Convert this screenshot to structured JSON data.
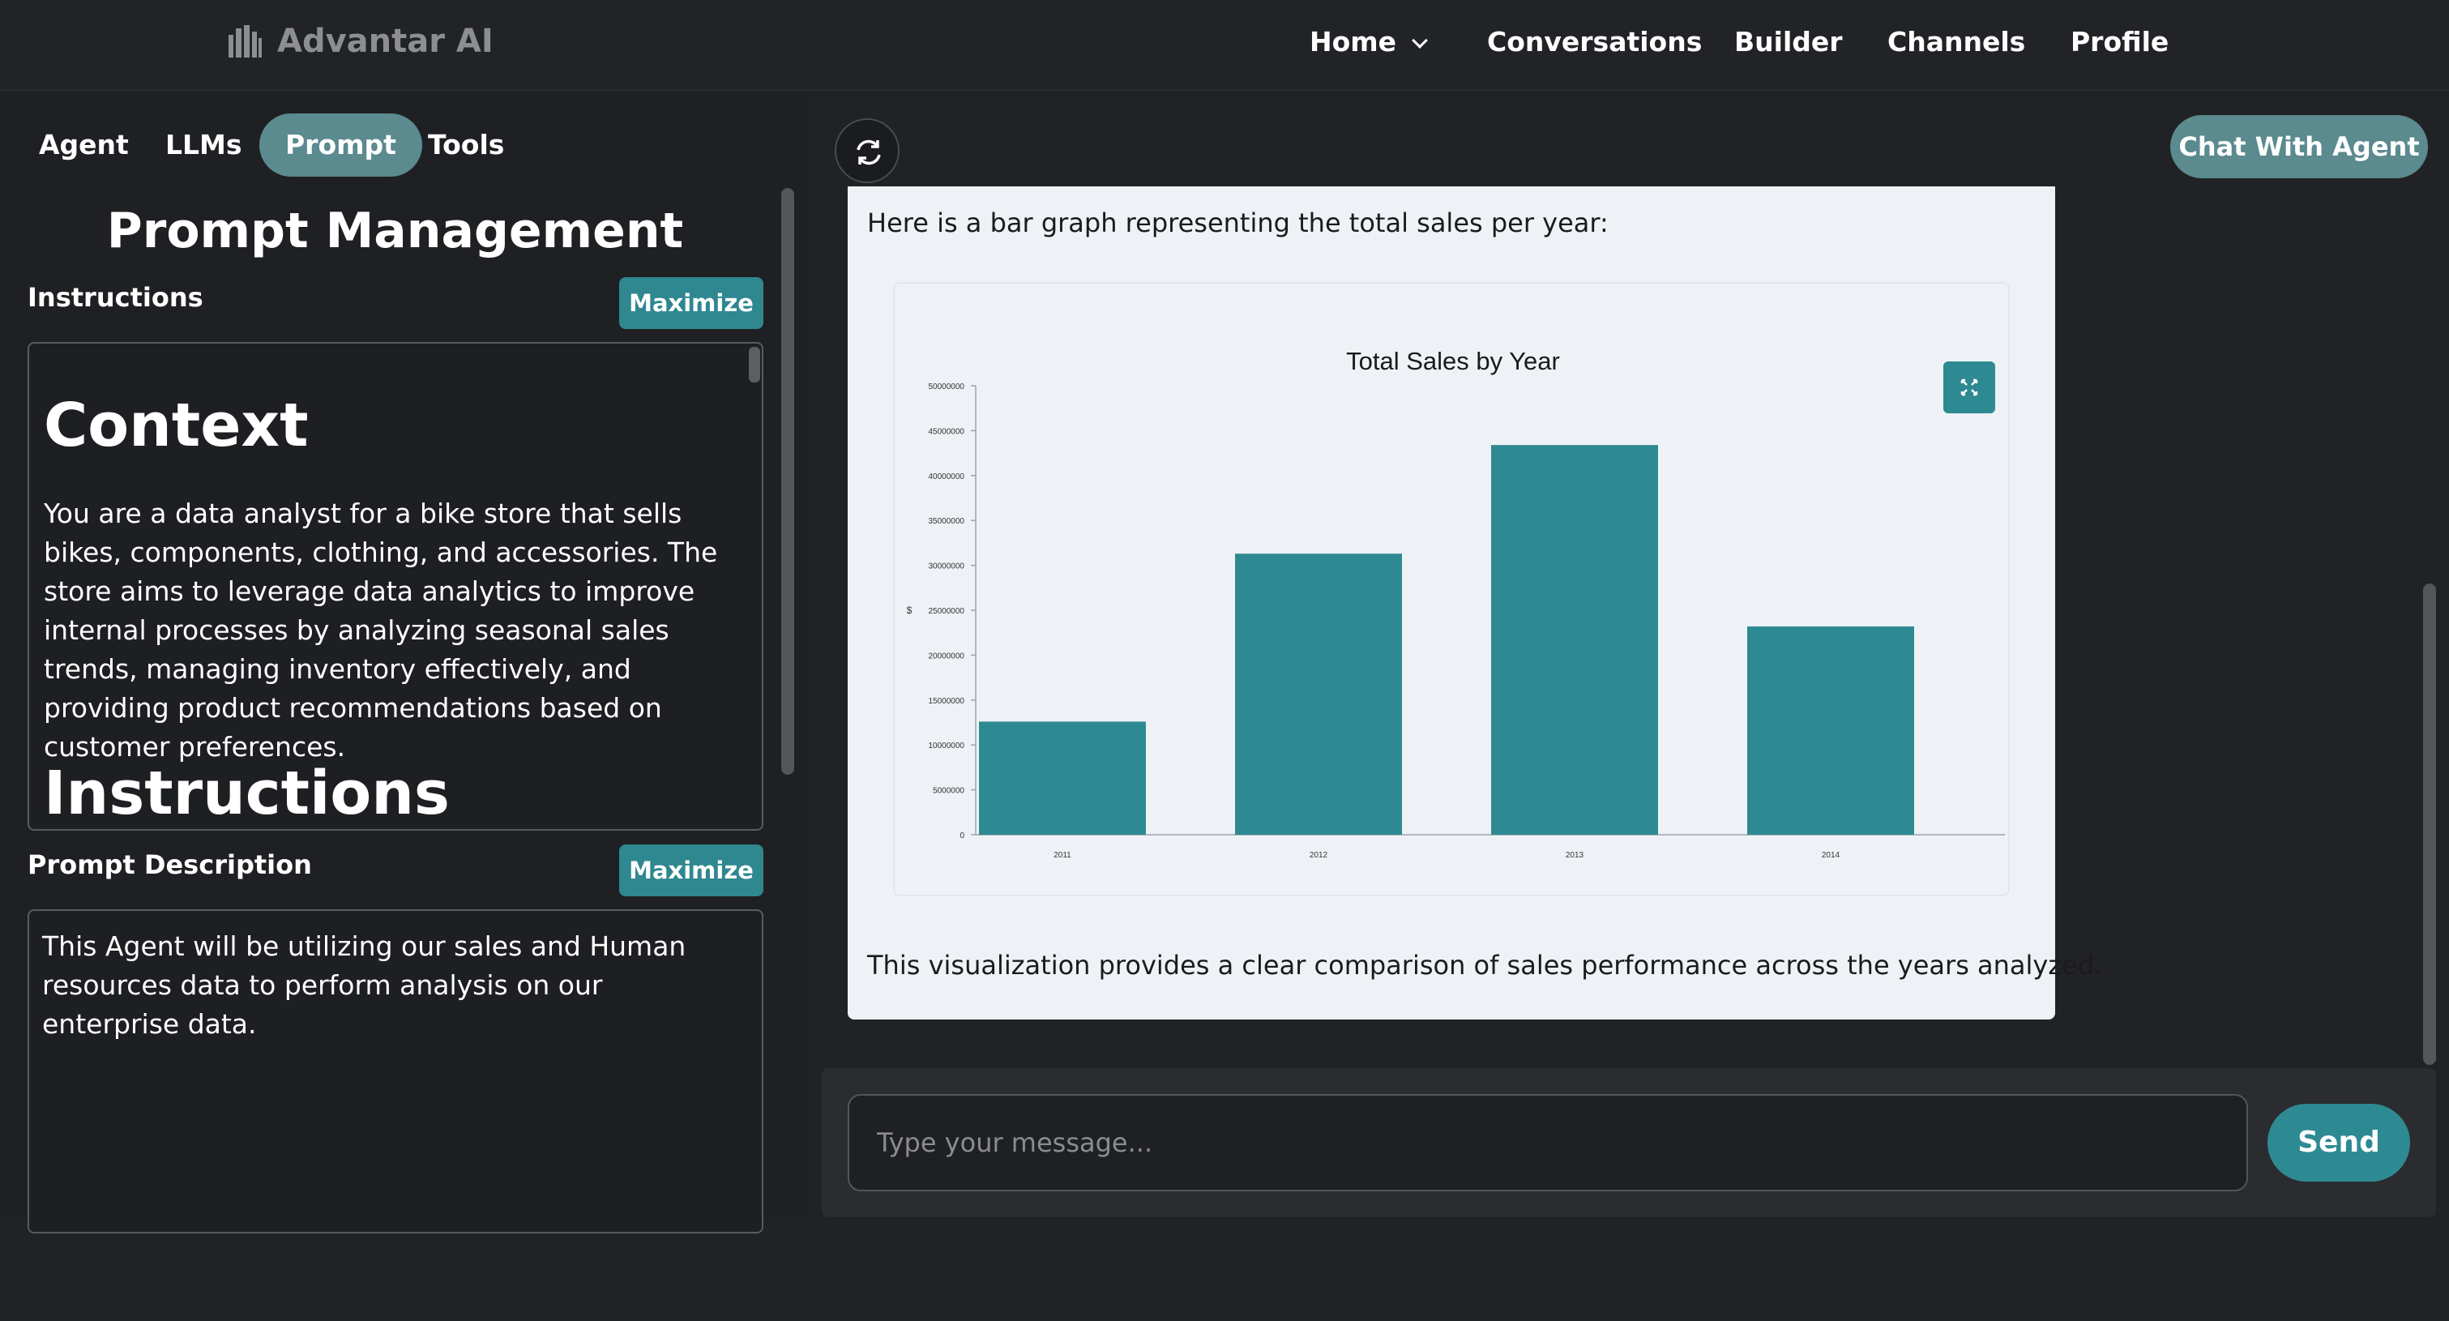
{
  "brand": {
    "name": "Advantar AI",
    "icon": "building-logo-icon"
  },
  "nav": [
    {
      "label": "Home",
      "has_dropdown": true
    },
    {
      "label": "Conversations"
    },
    {
      "label": "Builder"
    },
    {
      "label": "Channels"
    },
    {
      "label": "Profile"
    }
  ],
  "tabs": [
    {
      "label": "Agent",
      "active": false
    },
    {
      "label": "LLMs",
      "active": false
    },
    {
      "label": "Prompt",
      "active": true
    },
    {
      "label": "Tools",
      "active": false
    }
  ],
  "prompt": {
    "title": "Prompt Management",
    "instructions_label": "Instructions",
    "maximize_label": "Maximize",
    "context_heading": "Context",
    "context_text": "You are a data analyst for a bike store that sells bikes, components, clothing, and accessories. The store aims to leverage data analytics to improve internal processes by analyzing seasonal sales trends, managing inventory effectively, and providing product recommendations based on customer preferences.",
    "instructions_heading": "Instructions",
    "description_label": "Prompt Description",
    "description_text": "This Agent will be utilizing our sales and Human resources data to perform analysis on our enterprise data."
  },
  "chat": {
    "refresh_icon": "refresh-icon",
    "chat_with_agent_label": "Chat With Agent",
    "message_intro": "Here is a bar graph representing the total sales per year:",
    "message_outro": "This visualization provides a clear comparison of sales performance across the years analyzed.",
    "input_placeholder": "Type your message...",
    "send_label": "Send"
  },
  "colors": {
    "accent": "#2e8a92",
    "tab_active": "#5b8a8f",
    "bar": "#2e8a92",
    "background": "#212225",
    "message_bg": "#eef2f6"
  },
  "chart_data": {
    "type": "bar",
    "title": "Total Sales by Year",
    "xlabel": "",
    "ylabel": "$",
    "categories": [
      "2011",
      "2012",
      "2013",
      "2014"
    ],
    "values": [
      12600000,
      31300000,
      43400000,
      23200000
    ],
    "ylim": [
      0,
      50000000
    ],
    "yticks": [
      "0",
      "5000000",
      "10000000",
      "15000000",
      "20000000",
      "25000000",
      "30000000",
      "35000000",
      "40000000",
      "45000000",
      "50000000"
    ],
    "grid": false,
    "legend": "none"
  }
}
